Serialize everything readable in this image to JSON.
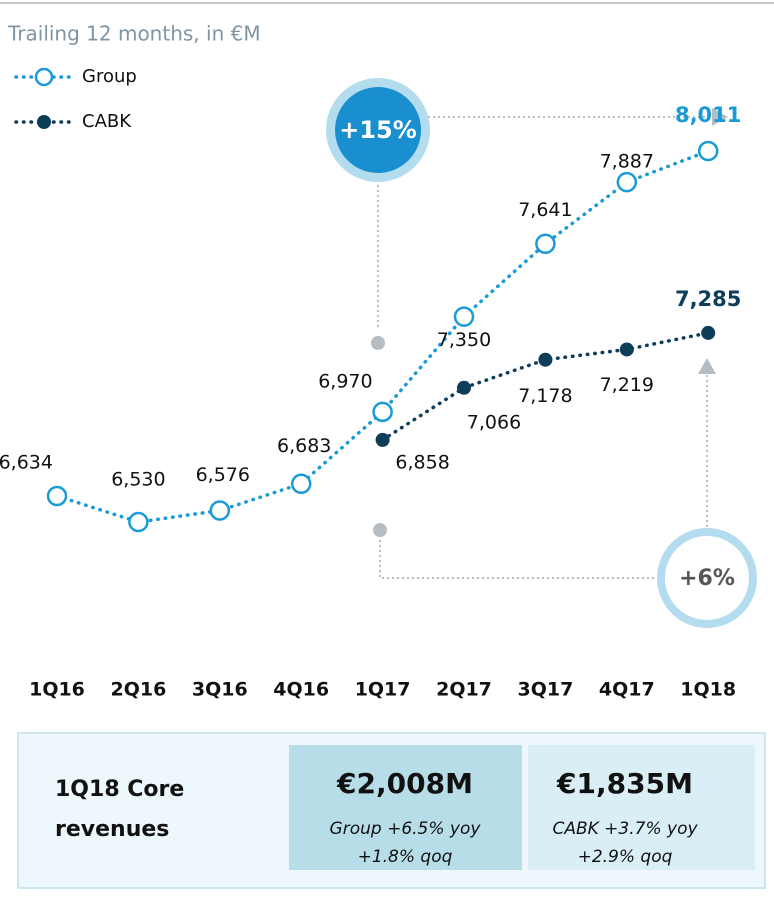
{
  "chart_data": {
    "type": "line",
    "subtitle": "Trailing 12 months, in €M",
    "categories": [
      "1Q16",
      "2Q16",
      "3Q16",
      "4Q16",
      "1Q17",
      "2Q17",
      "3Q17",
      "4Q17",
      "1Q18"
    ],
    "ylim": [
      6400,
      8200
    ],
    "legend": "top-left",
    "series": [
      {
        "name": "Group",
        "color": "#1a9ad6",
        "marker": "open",
        "values": [
          6634,
          6530,
          6576,
          6683,
          6970,
          7350,
          7641,
          7887,
          8011
        ],
        "value_labels": [
          "6,634",
          "6,530",
          "6,576",
          "6,683",
          "6,970",
          "7,350",
          "7,641",
          "7,887",
          "8,011"
        ]
      },
      {
        "name": "CABK",
        "color": "#0e3d5a",
        "marker": "filled",
        "values": [
          null,
          null,
          null,
          null,
          6858,
          7066,
          7178,
          7219,
          7285
        ],
        "value_labels": [
          null,
          null,
          null,
          null,
          "6,858",
          "7,066",
          "7,178",
          "7,219",
          "7,285"
        ]
      }
    ],
    "annotations": [
      "+15%",
      "+6%"
    ],
    "summary": {
      "title": [
        "1Q18 Core",
        "revenues"
      ],
      "boxes": [
        {
          "value": "€2,008M",
          "lines": [
            "Group +6.5% yoy",
            "+1.8% qoq"
          ]
        },
        {
          "value": "€1,835M",
          "lines": [
            "CABK +3.7% yoy",
            "+2.9% qoq"
          ]
        }
      ]
    }
  }
}
